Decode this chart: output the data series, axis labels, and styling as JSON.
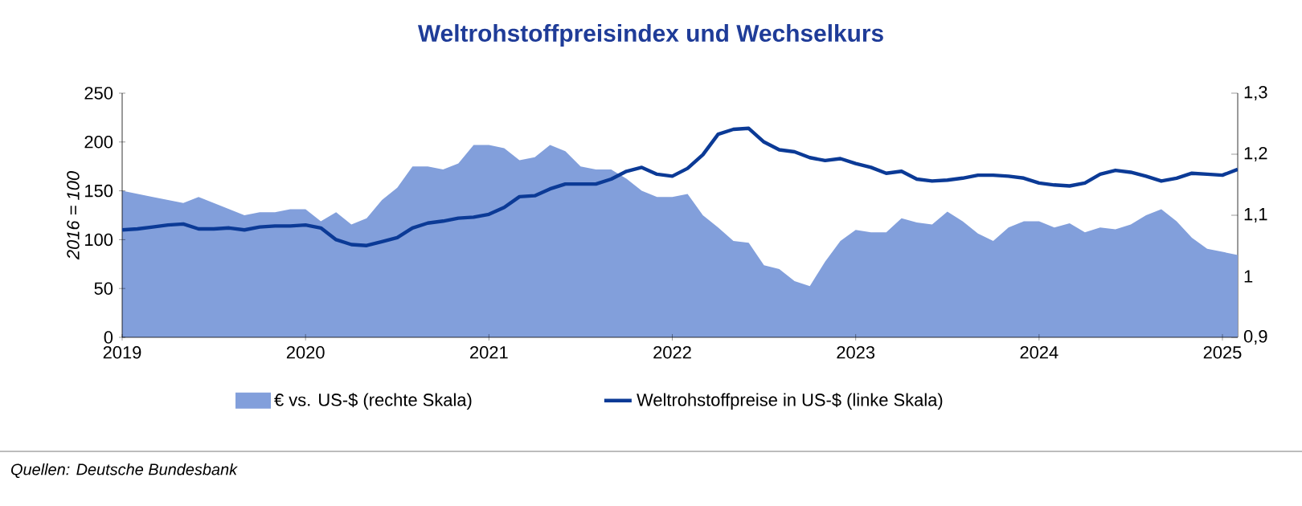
{
  "chart_data": {
    "type": "line",
    "title": "Weltrohstoffpreisindex und Wechselkurs",
    "ylabel": "2016 = 100",
    "annotations": [
      "Quellen: Deutsche Bundesbank"
    ],
    "x": [
      "2019-01",
      "2019-02",
      "2019-03",
      "2019-04",
      "2019-05",
      "2019-06",
      "2019-07",
      "2019-08",
      "2019-09",
      "2019-10",
      "2019-11",
      "2019-12",
      "2020-01",
      "2020-02",
      "2020-03",
      "2020-04",
      "2020-05",
      "2020-06",
      "2020-07",
      "2020-08",
      "2020-09",
      "2020-10",
      "2020-11",
      "2020-12",
      "2021-01",
      "2021-02",
      "2021-03",
      "2021-04",
      "2021-05",
      "2021-06",
      "2021-07",
      "2021-08",
      "2021-09",
      "2021-10",
      "2021-11",
      "2021-12",
      "2022-01",
      "2022-02",
      "2022-03",
      "2022-04",
      "2022-05",
      "2022-06",
      "2022-07",
      "2022-08",
      "2022-09",
      "2022-10",
      "2022-11",
      "2022-12",
      "2023-01",
      "2023-02",
      "2023-03",
      "2023-04",
      "2023-05",
      "2023-06",
      "2023-07",
      "2023-08",
      "2023-09",
      "2023-10",
      "2023-11",
      "2023-12",
      "2024-01",
      "2024-02",
      "2024-03",
      "2024-04",
      "2024-05",
      "2024-06",
      "2024-07",
      "2024-08",
      "2024-09",
      "2024-10",
      "2024-11",
      "2024-12",
      "2025-01",
      "2025-02"
    ],
    "series": [
      {
        "name": "€ vs. US-$ (rechte Skala)",
        "type": "area",
        "axis": "y2",
        "color": "#829fdb",
        "values": [
          1.14,
          1.135,
          1.13,
          1.125,
          1.12,
          1.13,
          1.12,
          1.11,
          1.1,
          1.105,
          1.105,
          1.11,
          1.11,
          1.09,
          1.105,
          1.085,
          1.095,
          1.125,
          1.145,
          1.18,
          1.18,
          1.175,
          1.185,
          1.215,
          1.215,
          1.21,
          1.19,
          1.195,
          1.215,
          1.205,
          1.18,
          1.175,
          1.175,
          1.16,
          1.14,
          1.13,
          1.13,
          1.135,
          1.1,
          1.08,
          1.058,
          1.055,
          1.018,
          1.012,
          0.992,
          0.984,
          1.024,
          1.058,
          1.076,
          1.072,
          1.072,
          1.095,
          1.088,
          1.085,
          1.106,
          1.09,
          1.07,
          1.058,
          1.08,
          1.09,
          1.09,
          1.08,
          1.087,
          1.072,
          1.08,
          1.077,
          1.085,
          1.1,
          1.11,
          1.09,
          1.063,
          1.045,
          1.04,
          1.035
        ]
      },
      {
        "name": "Weltrohstoffpreise in US-$ (linke Skala)",
        "color": "#0b3a96",
        "values": [
          110,
          111,
          113,
          115,
          116,
          111,
          111,
          112,
          110,
          113,
          114,
          114,
          115,
          112,
          100,
          95,
          94,
          98,
          102,
          112,
          117,
          119,
          122,
          123,
          126,
          133,
          144,
          145,
          152,
          157,
          157,
          157,
          162,
          170,
          174,
          167,
          165,
          173,
          187,
          208,
          213,
          214,
          200,
          192,
          190,
          184,
          181,
          183,
          178,
          174,
          168,
          170,
          162,
          160,
          161,
          163,
          166,
          166,
          165,
          163,
          158,
          156,
          155,
          158,
          167,
          171,
          169,
          165,
          160,
          163,
          168,
          167,
          166,
          172
        ]
      }
    ],
    "xlim": [
      "2019-01",
      "2025-02"
    ],
    "xticks": [
      "2019",
      "2020",
      "2021",
      "2022",
      "2023",
      "2024",
      "2025"
    ],
    "ylim": [
      0,
      250
    ],
    "yticks": [
      0,
      50,
      100,
      150,
      200,
      250
    ],
    "y2lim": [
      0.9,
      1.3
    ],
    "y2ticks": [
      {
        "value": 0.9,
        "label": "0,9"
      },
      {
        "value": 1,
        "label": "1"
      },
      {
        "value": 1.1,
        "label": "1,1"
      },
      {
        "value": 1.2,
        "label": "1,2"
      },
      {
        "value": 1.3,
        "label": "1,3"
      }
    ],
    "legend": "bottom",
    "marker": "none",
    "line_style": "solid"
  }
}
